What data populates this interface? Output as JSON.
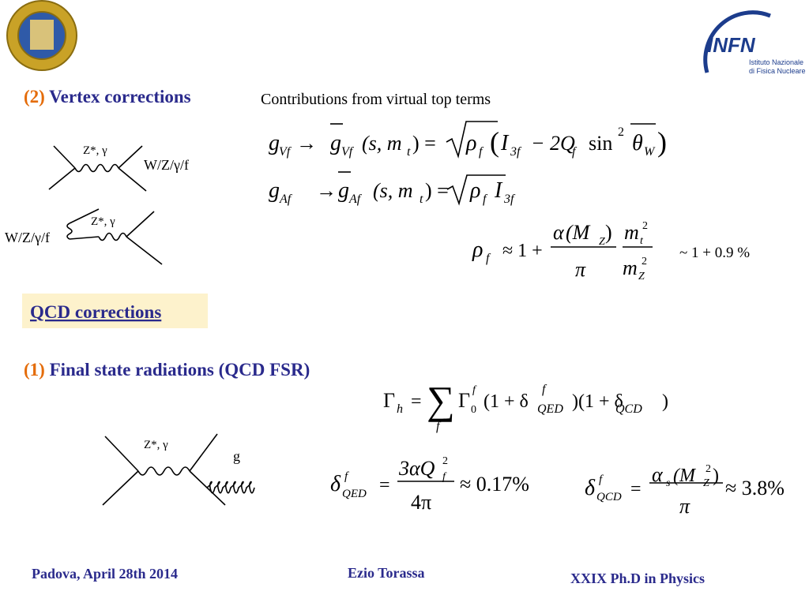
{
  "logo": {
    "name": "INFN",
    "line1": "Istituto Nazionale",
    "line2": "di Fisica Nucleare"
  },
  "vertex": {
    "number": "(2)",
    "title": "Vertex corrections",
    "subtitle": "Contributions from virtual top terms",
    "diagram1": {
      "boson": "Z*, γ",
      "final": "W/Z/γ/f"
    },
    "diagram2": {
      "boson": "Z*, γ",
      "initial": "W/Z/γ/f"
    },
    "eq_gv": [
      "g",
      "Vf",
      "→",
      "g",
      "Vf",
      "(s, m",
      "t",
      ") =",
      "ρ",
      "f",
      "(",
      "I",
      "3f",
      "− 2Q",
      "f",
      "sin",
      "2",
      "θ",
      "W",
      ")"
    ],
    "eq_ga": [
      "g",
      "Af",
      "→",
      "g",
      "Af",
      "(s, m",
      "t",
      ") =",
      "ρ",
      "f",
      "I",
      "3f"
    ],
    "eq_rho": [
      "ρ",
      "f",
      "≈ 1 +",
      "α",
      "(M",
      "Z",
      ")",
      "π",
      "m",
      "t",
      "2",
      "m",
      "Z",
      "2"
    ],
    "rho_value": "~ 1 + 0.9 %"
  },
  "qcd": {
    "title": "QCD corrections",
    "number": "(1)",
    "subtitle": "Final state radiations (QCD FSR)",
    "diagram3": {
      "boson": "Z*, γ",
      "gluon": "g"
    },
    "eq_gamma": [
      "Γ",
      "h",
      "=",
      "∑",
      "f",
      "Γ",
      "0",
      "f",
      "(1 + δ",
      "QED",
      "f",
      ")(1 + δ",
      "QCD",
      ")"
    ],
    "eq_qed": [
      "δ",
      "QED",
      "f",
      "=",
      "3αQ",
      "f",
      "2",
      "4π",
      "≈ 0.17%"
    ],
    "eq_qcd": [
      "δ",
      "QCD",
      "f",
      "=",
      "α",
      "s",
      "(M",
      "Z",
      "2",
      ")",
      "π",
      "≈ 3.8%"
    ]
  },
  "footer": {
    "left": "Padova, April 28th 2014",
    "center": "Ezio Torassa",
    "right": "XXIX  Ph.D in Physics"
  }
}
